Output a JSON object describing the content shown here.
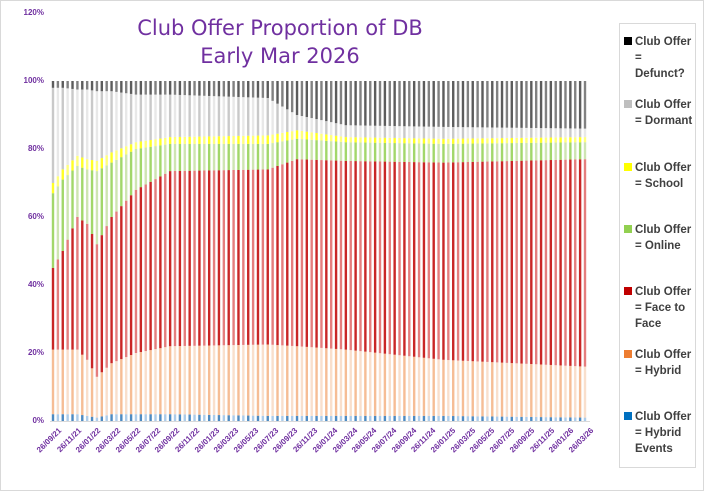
{
  "chart_data": {
    "type": "bar",
    "stacked": true,
    "percent_stacked": true,
    "title": "Club Offer Proportion of DB\nEarly Mar 2026",
    "title_lines": [
      "Club Offer Proportion of DB",
      "Early Mar 2026"
    ],
    "xlabel": "",
    "ylabel": "",
    "ylim": [
      0,
      120
    ],
    "yticks": [
      "0%",
      "20%",
      "40%",
      "60%",
      "80%",
      "100%",
      "120%"
    ],
    "xtick_labels": [
      "26/09/21",
      "26/11/21",
      "26/01/22",
      "26/03/22",
      "26/05/22",
      "26/07/22",
      "26/09/22",
      "26/11/22",
      "26/01/23",
      "26/03/23",
      "26/05/23",
      "26/07/23",
      "26/09/23",
      "26/11/23",
      "26/01/24",
      "26/03/24",
      "26/05/24",
      "26/07/24",
      "26/09/24",
      "26/11/24",
      "26/01/25",
      "26/03/25",
      "26/05/25",
      "26/07/25",
      "26/09/25",
      "26/11/25",
      "26/01/26",
      "26/03/26"
    ],
    "bar_count": 110,
    "legend_position": "right",
    "grid": false,
    "series_order_bottom_to_top": [
      "Club Offer = Hybrid Events",
      "Club Offer = Hybrid",
      "Club Offer = Face to Face",
      "Club Offer = Online",
      "Club Offer = School",
      "Club Offer = Dormant",
      "Club Offer = Defunct?"
    ],
    "cumulative_anchor_points_note": "Cumulative stacked tops (%) at selected bar indices; intermediate bars interpolated",
    "anchors": [
      {
        "bar": 0,
        "date": "26/09/21",
        "hybrid_events": 2,
        "hybrid": 21,
        "face_to_face": 45,
        "online": 67,
        "school": 70,
        "dormant": 98,
        "defunct": 100
      },
      {
        "bar": 2,
        "date": "~10/21",
        "hybrid_events": 2,
        "hybrid": 21,
        "face_to_face": 50,
        "online": 71,
        "school": 74,
        "dormant": 98,
        "defunct": 100
      },
      {
        "bar": 5,
        "date": "~11/21",
        "hybrid_events": 2,
        "hybrid": 21,
        "face_to_face": 60,
        "online": 75,
        "school": 78,
        "dormant": 97.5,
        "defunct": 100
      },
      {
        "bar": 7,
        "date": "~12/21",
        "hybrid_events": 1.5,
        "hybrid": 18,
        "face_to_face": 58,
        "online": 74,
        "school": 77,
        "dormant": 97.5,
        "defunct": 100
      },
      {
        "bar": 9,
        "date": "26/01/22",
        "hybrid_events": 1,
        "hybrid": 13,
        "face_to_face": 52,
        "online": 73.5,
        "school": 76.5,
        "dormant": 97,
        "defunct": 100
      },
      {
        "bar": 12,
        "date": "~02/22",
        "hybrid_events": 2,
        "hybrid": 17,
        "face_to_face": 60,
        "online": 76,
        "school": 79,
        "dormant": 97,
        "defunct": 100
      },
      {
        "bar": 17,
        "date": "~04/22",
        "hybrid_events": 2,
        "hybrid": 20,
        "face_to_face": 68,
        "online": 80,
        "school": 82,
        "dormant": 96,
        "defunct": 100
      },
      {
        "bar": 24,
        "date": "~07/22",
        "hybrid_events": 2,
        "hybrid": 22,
        "face_to_face": 73.5,
        "online": 81.5,
        "school": 83.5,
        "dormant": 96,
        "defunct": 100
      },
      {
        "bar": 44,
        "date": "~04/23",
        "hybrid_events": 1.5,
        "hybrid": 22.5,
        "face_to_face": 74,
        "online": 81.5,
        "school": 84,
        "dormant": 95,
        "defunct": 100
      },
      {
        "bar": 50,
        "date": "~07/23",
        "hybrid_events": 1.5,
        "hybrid": 22,
        "face_to_face": 77,
        "online": 83,
        "school": 85.5,
        "dormant": 90,
        "defunct": 100
      },
      {
        "bar": 60,
        "date": "~12/23",
        "hybrid_events": 1.5,
        "hybrid": 21,
        "face_to_face": 76.5,
        "online": 82,
        "school": 83.5,
        "dormant": 87,
        "defunct": 100
      },
      {
        "bar": 80,
        "date": "~10/24",
        "hybrid_events": 1.5,
        "hybrid": 18,
        "face_to_face": 76,
        "online": 81.5,
        "school": 83,
        "dormant": 86.5,
        "defunct": 100
      },
      {
        "bar": 109,
        "date": "26/03/26",
        "hybrid_events": 1,
        "hybrid": 16,
        "face_to_face": 77,
        "online": 82,
        "school": 83.5,
        "dormant": 86,
        "defunct": 100
      }
    ],
    "series": [
      {
        "name": "Club Offer = Defunct?",
        "color": "#000000"
      },
      {
        "name": "Club Offer = Dormant",
        "color": "#bfbfbf"
      },
      {
        "name": "Club Offer = School",
        "color": "#ffff00"
      },
      {
        "name": "Club Offer = Online",
        "color": "#92d050"
      },
      {
        "name": "Club Offer = Face to Face",
        "color": "#c00000"
      },
      {
        "name": "Club Offer = Hybrid",
        "color": "#ed7d31"
      },
      {
        "name": "Club Offer = Hybrid Events",
        "color": "#0070c0"
      }
    ]
  },
  "legend": {
    "items": [
      {
        "line1": "Club Offer",
        "line2": "= Defunct?",
        "line3": "",
        "color": "#000000"
      },
      {
        "line1": "Club Offer",
        "line2": "= Dormant",
        "line3": "",
        "color": "#bfbfbf"
      },
      {
        "line1": "Club Offer",
        "line2": "= School",
        "line3": "",
        "color": "#ffff00"
      },
      {
        "line1": "Club Offer",
        "line2": "= Online",
        "line3": "",
        "color": "#92d050"
      },
      {
        "line1": "Club Offer",
        "line2": "= Face to",
        "line3": "Face",
        "color": "#c00000"
      },
      {
        "line1": "Club Offer",
        "line2": "= Hybrid",
        "line3": "",
        "color": "#ed7d31"
      },
      {
        "line1": "Club Offer",
        "line2": "= Hybrid",
        "line3": "Events",
        "color": "#0070c0"
      }
    ]
  }
}
